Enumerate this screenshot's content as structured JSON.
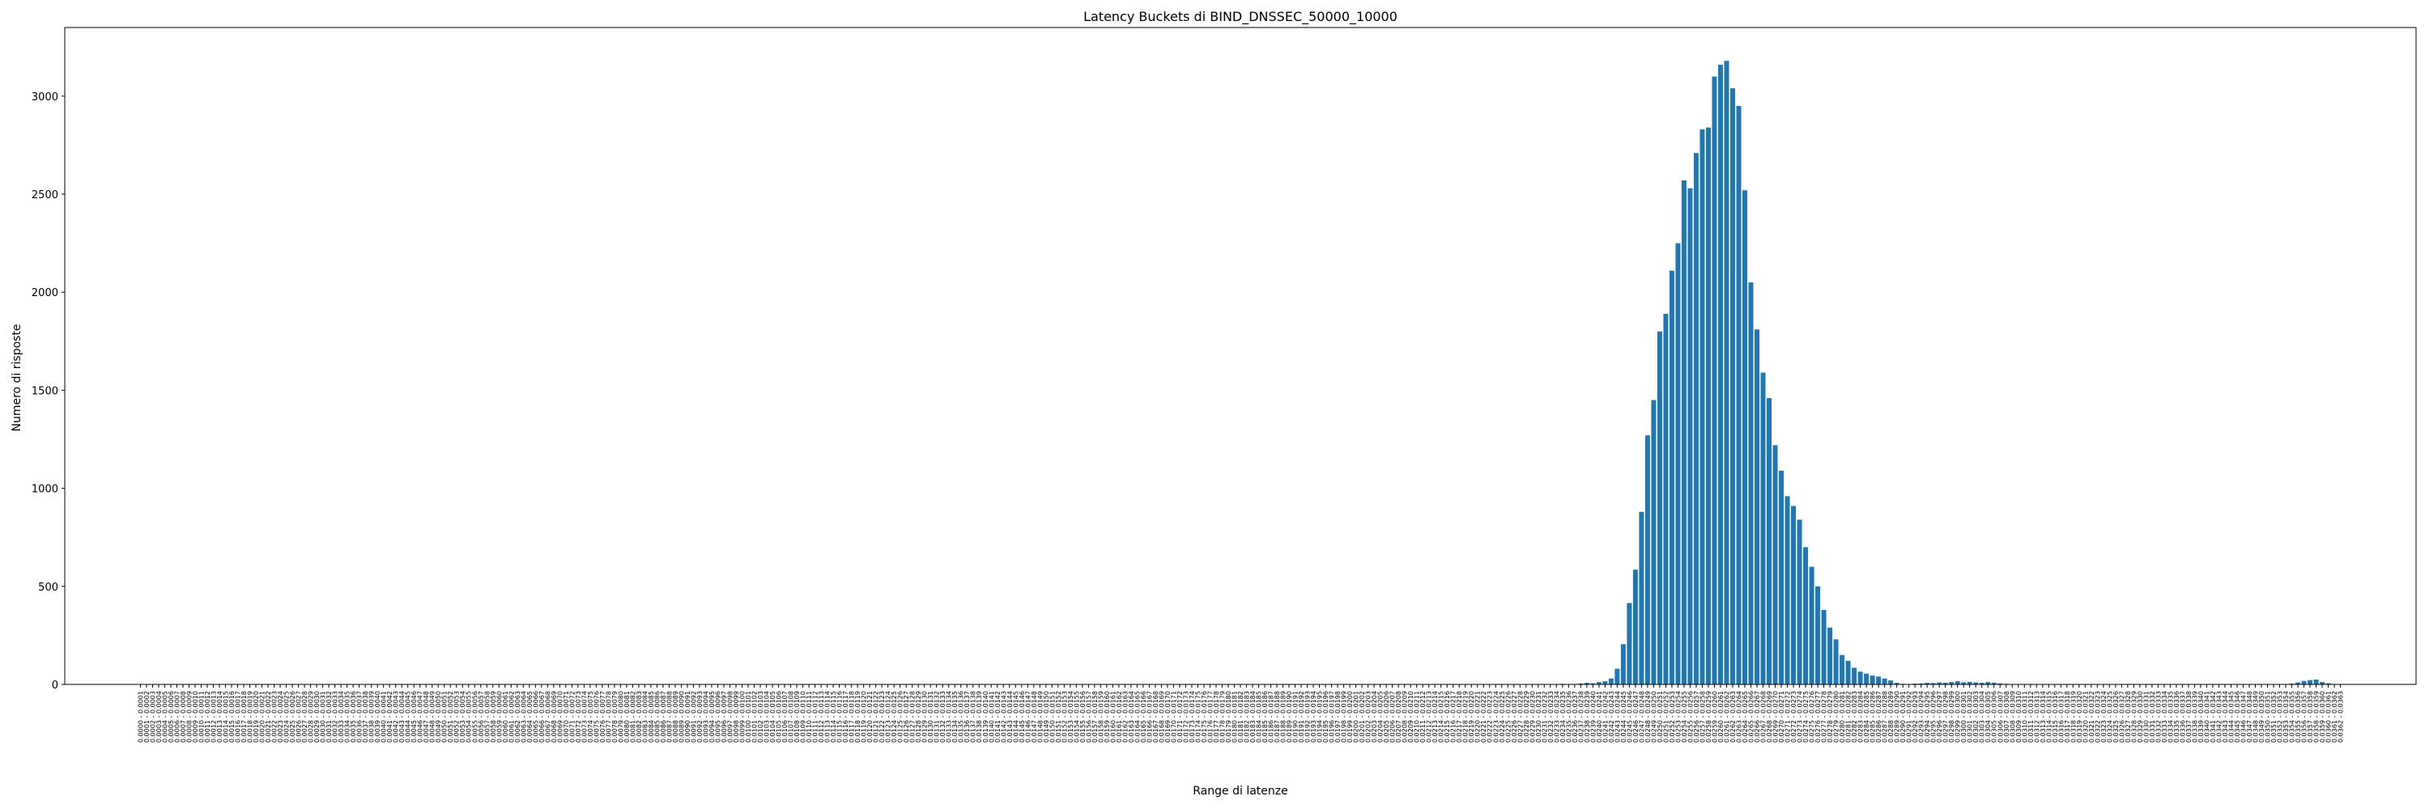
{
  "chart_data": {
    "type": "bar",
    "title": "Latency Buckets di BIND_DNSSEC_50000_10000",
    "xlabel": "Range di latenze",
    "ylabel": "Numero di risposte",
    "ylim": [
      0,
      3350
    ],
    "yticks": [
      0,
      500,
      1000,
      1500,
      2000,
      2500,
      3000
    ],
    "grid": false,
    "legend": "none",
    "bar_color": "#1f77b4",
    "category_count": 363,
    "bucket_start": 0,
    "bucket_width": 0.0001,
    "label_decimals": 4,
    "nonzero_values": {
      "233": 2,
      "234": 3,
      "235": 2,
      "236": 1,
      "237": 5,
      "238": 8,
      "239": 6,
      "240": 12,
      "241": 16,
      "242": 30,
      "243": 80,
      "244": 205,
      "245": 415,
      "246": 585,
      "247": 880,
      "248": 1270,
      "249": 1450,
      "250": 1800,
      "251": 1890,
      "252": 2110,
      "253": 2250,
      "254": 2570,
      "255": 2530,
      "256": 2710,
      "257": 2830,
      "258": 2840,
      "259": 3100,
      "260": 3160,
      "261": 3180,
      "262": 3040,
      "263": 2950,
      "264": 2520,
      "265": 2050,
      "266": 1810,
      "267": 1590,
      "268": 1460,
      "269": 1220,
      "270": 1090,
      "271": 960,
      "272": 910,
      "273": 840,
      "274": 700,
      "275": 600,
      "276": 500,
      "277": 380,
      "278": 290,
      "279": 230,
      "280": 150,
      "281": 120,
      "282": 85,
      "283": 65,
      "284": 55,
      "285": 45,
      "286": 40,
      "287": 30,
      "288": 20,
      "289": 8,
      "290": 3,
      "291": 2,
      "292": 4,
      "293": 5,
      "294": 8,
      "295": 7,
      "296": 10,
      "297": 9,
      "298": 12,
      "299": 16,
      "300": 11,
      "301": 13,
      "302": 10,
      "303": 8,
      "304": 12,
      "305": 9,
      "306": 5,
      "307": 3,
      "308": 2,
      "354": 4,
      "355": 10,
      "356": 18,
      "357": 22,
      "358": 25,
      "359": 12,
      "360": 6
    }
  }
}
